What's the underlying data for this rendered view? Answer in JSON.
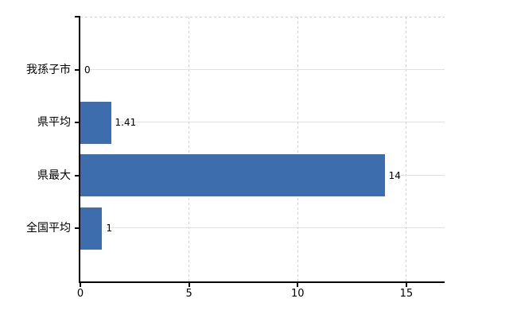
{
  "chart_data": {
    "type": "bar",
    "orientation": "horizontal",
    "title": "",
    "xlabel": "",
    "ylabel": "",
    "categories": [
      "我孫子市",
      "県平均",
      "県最大",
      "全国平均"
    ],
    "values": [
      0,
      1.41,
      14,
      1
    ],
    "value_labels": [
      "0",
      "1.41",
      "14",
      "1"
    ],
    "x_tick_labels": [
      "0",
      "5",
      "10",
      "15"
    ],
    "x_tick_values": [
      0,
      5,
      10,
      15
    ],
    "xlim": [
      0,
      16.76
    ],
    "grid": true,
    "legend": "none",
    "colors": {
      "bar": "#3e6dad",
      "row_line": "#dde4dc",
      "grid_dash": "#d2d2d2",
      "axis": "#000000",
      "text": "#000000",
      "background": "#ffffff"
    }
  }
}
